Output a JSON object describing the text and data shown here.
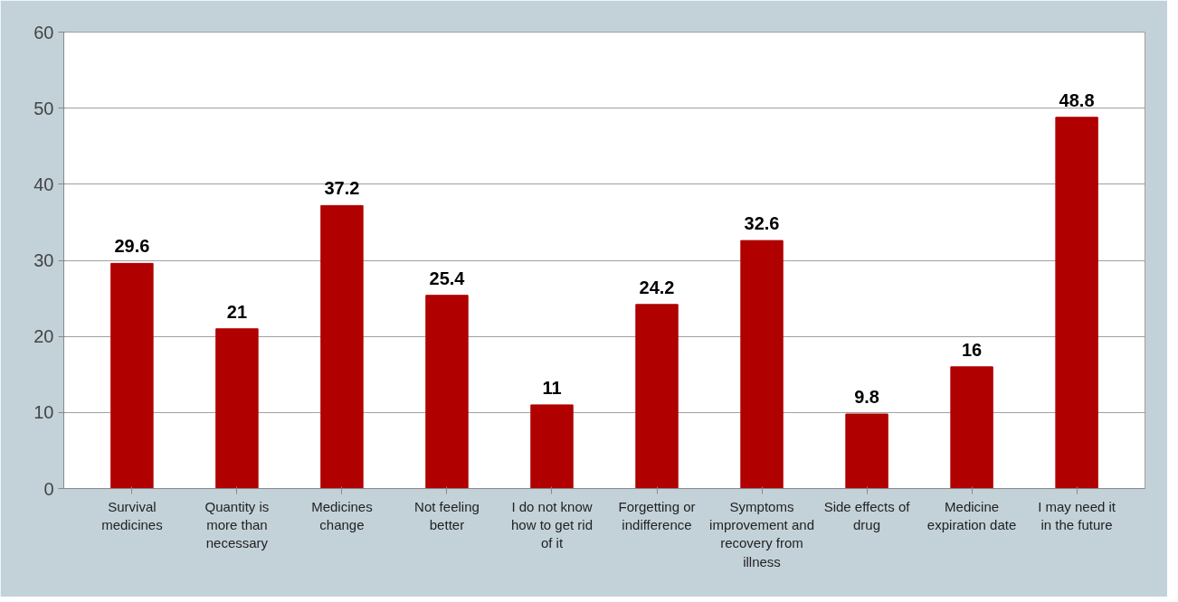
{
  "chart_data": {
    "type": "bar",
    "categories": [
      "Survival medicines",
      "Quantity is more than necessary",
      "Medicines change",
      "Not feeling better",
      "I do not know how to get rid of it",
      "Forgetting or indifference",
      "Symptoms improvement and recovery from illness",
      "Side effects of drug",
      "Medicine expiration date",
      "I may need it in the future"
    ],
    "values": [
      29.6,
      21,
      37.2,
      25.4,
      11,
      24.2,
      32.6,
      9.8,
      16,
      48.8
    ],
    "color": "#b00000",
    "ylim": [
      0,
      60
    ],
    "yticks": [
      0,
      10,
      20,
      30,
      40,
      50,
      60
    ],
    "grid": "y",
    "data_labels": true
  }
}
